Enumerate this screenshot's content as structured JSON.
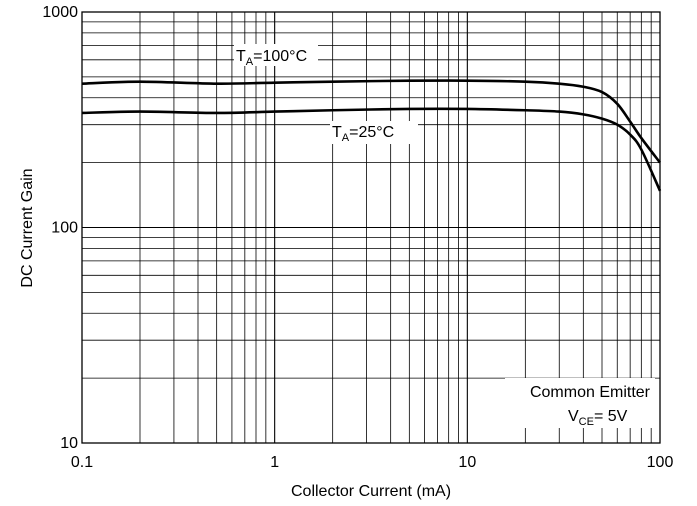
{
  "chart_data": {
    "type": "line",
    "xlabel": "Collector Current (mA)",
    "ylabel": "DC Current Gain",
    "xscale": "log",
    "yscale": "log",
    "xlim": [
      0.1,
      100
    ],
    "ylim": [
      10,
      1000
    ],
    "grid": true,
    "x_ticks": [
      "0.1",
      "1",
      "10",
      "100"
    ],
    "y_ticks": [
      "10",
      "100",
      "1000"
    ],
    "series": [
      {
        "label_main": "T",
        "label_sub": "A",
        "label_rest": "=100°C",
        "color": "#000000",
        "x": [
          0.1,
          0.2,
          0.5,
          1,
          2,
          5,
          10,
          20,
          30,
          40,
          50,
          60,
          70,
          80,
          100
        ],
        "y": [
          465,
          475,
          465,
          470,
          475,
          480,
          480,
          475,
          465,
          450,
          425,
          375,
          310,
          260,
          200
        ]
      },
      {
        "label_main": "T",
        "label_sub": "A",
        "label_rest": "=25°C",
        "color": "#000000",
        "x": [
          0.1,
          0.2,
          0.5,
          1,
          2,
          5,
          10,
          20,
          30,
          40,
          50,
          60,
          70,
          80,
          100
        ],
        "y": [
          340,
          345,
          340,
          345,
          350,
          355,
          355,
          350,
          345,
          335,
          320,
          300,
          270,
          230,
          148
        ]
      }
    ],
    "annotations": {
      "condition_line1": "Common Emitter",
      "condition_v": "V",
      "condition_sub": "CE",
      "condition_rest": "= 5V"
    }
  }
}
